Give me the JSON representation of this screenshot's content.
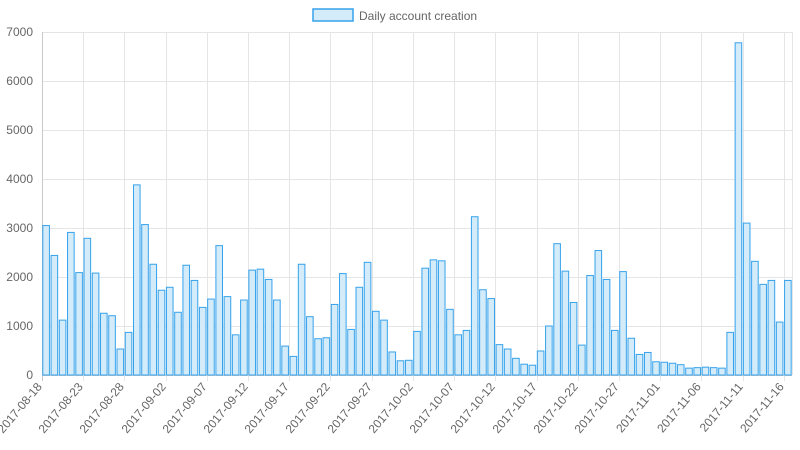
{
  "colors": {
    "bar_fill": "#d4ecf9",
    "bar_stroke": "#36a2eb",
    "grid": "#e5e5e5",
    "axis": "#c8c8c8",
    "text": "#666666"
  },
  "chart_data": {
    "type": "bar",
    "title": "",
    "xlabel": "",
    "ylabel": "",
    "ylim": [
      0,
      7000
    ],
    "y_ticks": [
      0,
      1000,
      2000,
      3000,
      4000,
      5000,
      6000,
      7000
    ],
    "grid": true,
    "legend_position": "top",
    "x_tick_labels": [
      "2017-08-18",
      "2017-08-23",
      "2017-08-28",
      "2017-09-02",
      "2017-09-07",
      "2017-09-12",
      "2017-09-17",
      "2017-09-22",
      "2017-09-27",
      "2017-10-02",
      "2017-10-07",
      "2017-10-12",
      "2017-10-17",
      "2017-10-22",
      "2017-10-27",
      "2017-11-01",
      "2017-11-06",
      "2017-11-11",
      "2017-11-16"
    ],
    "start_date": "2017-08-18",
    "end_date": "2017-11-16",
    "series": [
      {
        "name": "Daily account creation",
        "values": [
          3050,
          2440,
          1120,
          2910,
          2090,
          2790,
          2080,
          1260,
          1210,
          530,
          870,
          3880,
          3070,
          2260,
          1730,
          1790,
          1280,
          2240,
          1930,
          1380,
          1550,
          2640,
          1600,
          820,
          1530,
          2140,
          2160,
          1950,
          1530,
          590,
          380,
          2260,
          1190,
          740,
          760,
          1440,
          2070,
          930,
          1790,
          2300,
          1300,
          1120,
          470,
          290,
          300,
          890,
          2180,
          2350,
          2330,
          1340,
          820,
          910,
          3230,
          1740,
          1560,
          620,
          530,
          340,
          220,
          200,
          490,
          1000,
          2680,
          2120,
          1480,
          610,
          2030,
          2540,
          1950,
          910,
          2110,
          750,
          420,
          460,
          270,
          260,
          240,
          210,
          140,
          150,
          160,
          150,
          140,
          870,
          6780,
          3100,
          2320,
          1850,
          1930,
          1080,
          1930
        ]
      }
    ]
  }
}
